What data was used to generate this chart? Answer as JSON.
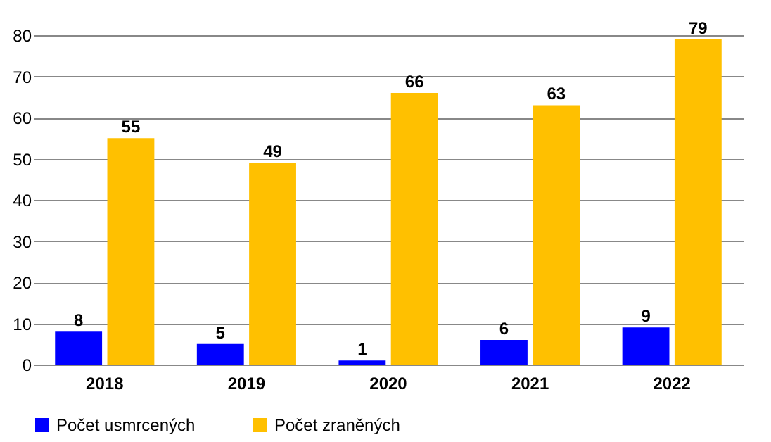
{
  "chart_data": {
    "type": "bar",
    "categories": [
      "2018",
      "2019",
      "2020",
      "2021",
      "2022"
    ],
    "series": [
      {
        "name": "Počet usmrcených",
        "color": "#0000ff",
        "values": [
          8,
          5,
          1,
          6,
          9
        ]
      },
      {
        "name": "Počet zraněných",
        "color": "#ffc000",
        "values": [
          55,
          49,
          66,
          63,
          79
        ]
      }
    ],
    "ylim": [
      0,
      80
    ],
    "yticks": [
      0,
      10,
      20,
      30,
      40,
      50,
      60,
      70,
      80
    ],
    "grid": "y",
    "legend": "bottom",
    "data_labels": true
  }
}
